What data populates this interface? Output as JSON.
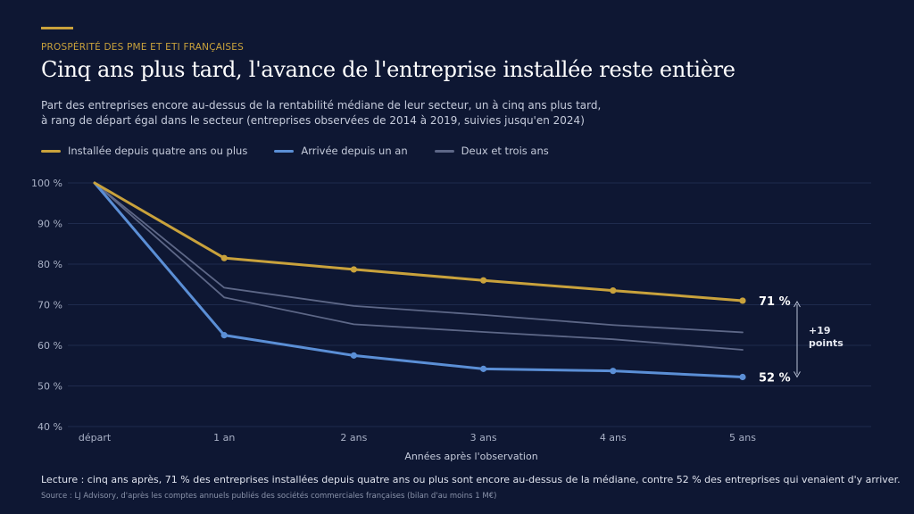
{
  "header": {
    "kicker": "PROSPÉRITÉ DES PME ET ETI FRANÇAISES",
    "title": "Cinq ans plus tard, l'avance de l'entreprise installée reste entière",
    "subtitle_line1": "Part des entreprises encore au-dessus de la rentabilité médiane de leur secteur, un à cinq ans plus tard,",
    "subtitle_line2": "à rang de départ égal dans le secteur (entreprises observées de 2014 à 2019, suivies jusqu'en 2024)"
  },
  "legend": {
    "items": [
      {
        "label": "Installée depuis quatre ans ou plus",
        "color": "#c9a23c"
      },
      {
        "label": "Arrivée depuis un an",
        "color": "#5b8fd6"
      },
      {
        "label": "Deux et trois ans",
        "color": "#5d6787"
      }
    ]
  },
  "chart_data": {
    "type": "line",
    "categories": [
      "départ",
      "1 an",
      "2 ans",
      "3 ans",
      "4 ans",
      "5 ans"
    ],
    "xlabel": "Années après l'observation",
    "ylim": [
      40,
      100
    ],
    "yticks": [
      100,
      90,
      80,
      70,
      60,
      50,
      40
    ],
    "ytick_labels": [
      "100 %",
      "90 %",
      "80 %",
      "70 %",
      "60 %",
      "50 %",
      "40 %"
    ],
    "grid": true,
    "series": [
      {
        "name": "Installée depuis quatre ans ou plus",
        "color": "#c9a23c",
        "values": [
          100,
          81.5,
          78.7,
          76,
          73.5,
          71
        ],
        "markers": true,
        "end_label": "71 %"
      },
      {
        "name": "Arrivée depuis un an",
        "color": "#5b8fd6",
        "values": [
          100,
          62.5,
          57.5,
          54.2,
          53.7,
          52.2
        ],
        "markers": true,
        "end_label": "52 %"
      },
      {
        "name": "Deux et trois ans",
        "color": "#5d6787",
        "values": [
          100,
          74.2,
          69.7,
          67.5,
          65,
          63.2
        ],
        "markers": false
      },
      {
        "name": "Deux et trois ans",
        "color": "#5d6787",
        "values": [
          100,
          71.8,
          65.2,
          63.3,
          61.5,
          58.9
        ],
        "markers": false
      }
    ],
    "annotation": {
      "line1": "+19",
      "line2": "points",
      "from": 71,
      "to": 52
    }
  },
  "footer": {
    "reading": "Lecture : cinq ans après, 71 % des entreprises installées depuis quatre ans ou plus sont encore au-dessus de la médiane, contre 52 % des entreprises qui venaient d'y arriver.",
    "source": "Source : LJ Advisory, d'après les comptes annuels publiés des sociétés commerciales françaises (bilan d'au moins 1 M€)"
  }
}
